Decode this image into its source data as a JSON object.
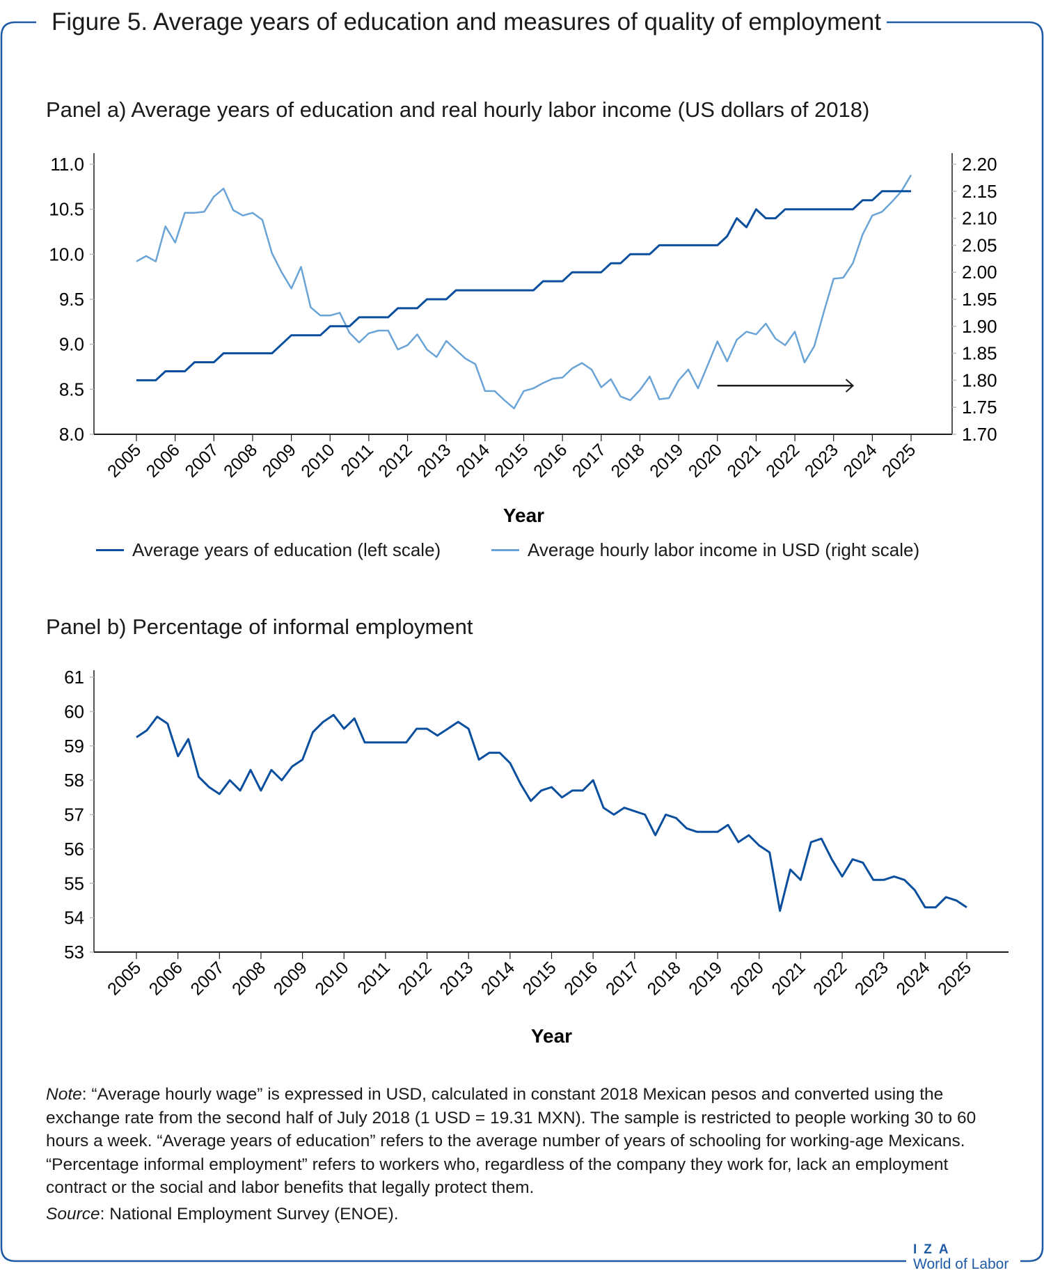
{
  "figure_title": "Figure 5. Average years of education and measures of quality of employment",
  "colors": {
    "frame": "#1f5aa6",
    "education": "#0a4f9e",
    "income": "#6aa3d6",
    "informal": "#0a4f9e",
    "axis": "#1a1a1a"
  },
  "chart_data": [
    {
      "type": "line",
      "title": "Panel a) Average years of education and real hourly labor income (US dollars of 2018)",
      "xlabel": "Year",
      "x_ticks": [
        "2005",
        "2006",
        "2007",
        "2008",
        "2009",
        "2010",
        "2011",
        "2012",
        "2013",
        "2014",
        "2015",
        "2016",
        "2017",
        "2018",
        "2019",
        "2020",
        "2021",
        "2022",
        "2023",
        "2024",
        "2025"
      ],
      "xlim": [
        2005,
        2025
      ],
      "ylim_left": [
        8.0,
        11.0
      ],
      "yticks_left": [
        "8.0",
        "8.5",
        "9.0",
        "9.5",
        "10.0",
        "10.5",
        "11.0"
      ],
      "ylim_right": [
        1.7,
        2.2
      ],
      "yticks_right": [
        "1.70",
        "1.75",
        "1.80",
        "1.85",
        "1.90",
        "1.95",
        "2.00",
        "2.05",
        "2.10",
        "2.15",
        "2.20"
      ],
      "grid": false,
      "legend_placement": "bottom",
      "x_start": 2005,
      "x_step": 0.25,
      "series": [
        {
          "name": "Average years of education (left scale)",
          "axis": "left",
          "values": [
            8.6,
            8.6,
            8.6,
            8.7,
            8.7,
            8.7,
            8.8,
            8.8,
            8.8,
            8.9,
            8.9,
            8.9,
            8.9,
            8.9,
            8.9,
            9.0,
            9.1,
            9.1,
            9.1,
            9.1,
            9.2,
            9.2,
            9.2,
            9.3,
            9.3,
            9.3,
            9.3,
            9.4,
            9.4,
            9.4,
            9.5,
            9.5,
            9.5,
            9.6,
            9.6,
            9.6,
            9.6,
            9.6,
            9.6,
            9.6,
            9.6,
            9.6,
            9.7,
            9.7,
            9.7,
            9.8,
            9.8,
            9.8,
            9.8,
            9.9,
            9.9,
            10.0,
            10.0,
            10.0,
            10.1,
            10.1,
            10.1,
            10.1,
            10.1,
            10.1,
            10.1,
            10.2,
            10.4,
            10.3,
            10.5,
            10.4,
            10.4,
            10.5,
            10.5,
            10.5,
            10.5,
            10.5,
            10.5,
            10.5,
            10.5,
            10.6,
            10.6,
            10.7,
            10.7,
            10.7,
            10.7
          ]
        },
        {
          "name": "Average hourly labor income in USD (right scale)",
          "axis": "right",
          "values": [
            2.02,
            2.03,
            2.02,
            2.085,
            2.055,
            2.11,
            2.11,
            2.112,
            2.14,
            2.155,
            2.115,
            2.105,
            2.11,
            2.097,
            2.035,
            2.0,
            1.97,
            2.01,
            1.935,
            1.92,
            1.92,
            1.925,
            1.888,
            1.87,
            1.887,
            1.892,
            1.892,
            1.857,
            1.865,
            1.885,
            1.857,
            1.843,
            1.873,
            1.856,
            1.84,
            1.83,
            1.78,
            1.78,
            1.763,
            1.748,
            1.78,
            1.785,
            1.795,
            1.803,
            1.805,
            1.822,
            1.832,
            1.82,
            1.787,
            1.802,
            1.77,
            1.763,
            1.782,
            1.807,
            1.765,
            1.767,
            1.8,
            1.82,
            1.785,
            1.828,
            1.872,
            1.835,
            1.875,
            1.89,
            1.885,
            1.905,
            1.877,
            1.865,
            1.89,
            1.833,
            1.863,
            1.927,
            1.988,
            1.99,
            2.017,
            2.07,
            2.105,
            2.112,
            2.13,
            2.15,
            2.18
          ]
        }
      ],
      "annotations": [
        {
          "type": "arrow",
          "from_x": 2020,
          "to_x": 2023.5,
          "y_right": 1.79
        }
      ]
    },
    {
      "type": "line",
      "title": "Panel b) Percentage of informal employment",
      "xlabel": "Year",
      "x_ticks": [
        "2005",
        "2006",
        "2007",
        "2008",
        "2009",
        "2010",
        "2011",
        "2012",
        "2013",
        "2014",
        "2015",
        "2016",
        "2017",
        "2018",
        "2019",
        "2020",
        "2021",
        "2022",
        "2023",
        "2024",
        "2025"
      ],
      "xlim": [
        2005,
        2025
      ],
      "ylim": [
        53,
        61
      ],
      "yticks": [
        "53",
        "54",
        "55",
        "56",
        "57",
        "58",
        "59",
        "60",
        "61"
      ],
      "grid": false,
      "x_start": 2005,
      "x_step": 0.25,
      "series": [
        {
          "values": [
            59.25,
            59.45,
            59.85,
            59.65,
            58.7,
            59.2,
            58.1,
            57.8,
            57.6,
            58.0,
            57.7,
            58.3,
            57.7,
            58.3,
            58.0,
            58.4,
            58.6,
            59.4,
            59.7,
            59.9,
            59.5,
            59.8,
            59.1,
            59.1,
            59.1,
            59.1,
            59.1,
            59.5,
            59.5,
            59.3,
            59.5,
            59.7,
            59.5,
            58.6,
            58.8,
            58.8,
            58.5,
            57.9,
            57.4,
            57.7,
            57.8,
            57.5,
            57.7,
            57.7,
            58.0,
            57.2,
            57.0,
            57.2,
            57.1,
            57.0,
            56.4,
            57.0,
            56.9,
            56.6,
            56.5,
            56.5,
            56.5,
            56.7,
            56.2,
            56.4,
            56.1,
            55.9,
            54.2,
            55.4,
            55.1,
            56.2,
            56.3,
            55.7,
            55.2,
            55.7,
            55.6,
            55.1,
            55.1,
            55.2,
            55.1,
            54.8,
            54.3,
            54.3,
            54.6,
            54.5,
            54.3
          ]
        }
      ]
    }
  ],
  "note": {
    "note_label": "Note",
    "note_text": ": “Average hourly wage” is expressed in USD, calculated in constant 2018 Mexican pesos and converted using the exchange rate from the second half of July 2018 (1 USD = 19.31 MXN). The sample is restricted to people working 30 to 60 hours a week. “Average years of education” refers to the average number of years of schooling for working-age Mexicans. “Percentage informal employment” refers to workers who, regardless of the company they work for, lack an employment contract or the social and labor benefits that legally protect them.",
    "source_label": "Source",
    "source_text": ": National Employment Survey (ENOE)."
  },
  "logo": {
    "line1": "IZA",
    "line2": "World of Labor"
  }
}
